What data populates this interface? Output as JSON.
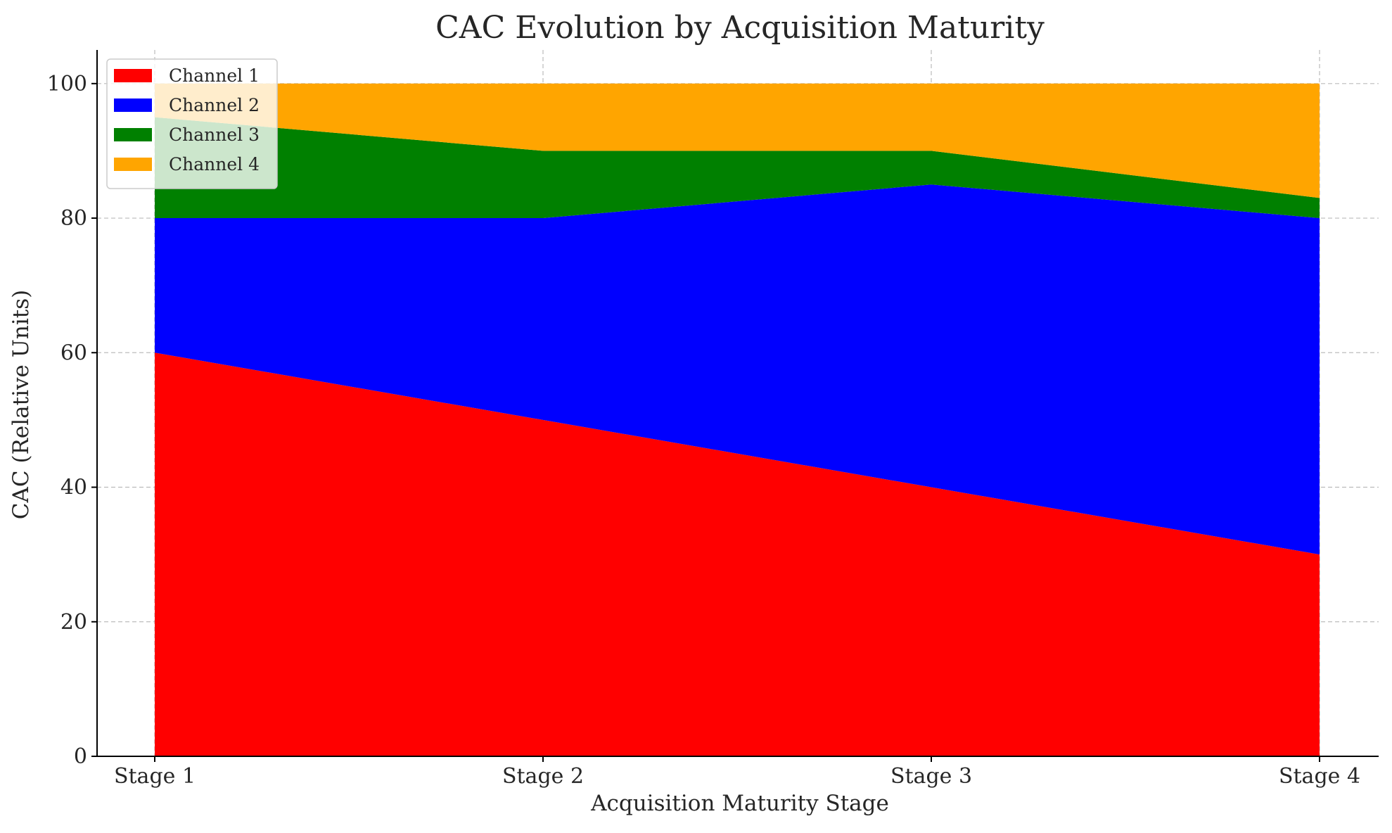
{
  "chart_data": {
    "type": "area",
    "stacked": true,
    "title": "CAC Evolution by Acquisition Maturity",
    "xlabel": "Acquisition Maturity Stage",
    "ylabel": "CAC (Relative Units)",
    "categories": [
      "Stage 1",
      "Stage 2",
      "Stage 3",
      "Stage 4"
    ],
    "ylim": [
      0,
      105
    ],
    "yticks": [
      0,
      20,
      40,
      60,
      80,
      100
    ],
    "grid": true,
    "legend_position": "top-left",
    "series": [
      {
        "name": "Channel 1",
        "color": "#ff0000",
        "values": [
          60,
          50,
          40,
          30
        ]
      },
      {
        "name": "Channel 2",
        "color": "#0000ff",
        "values": [
          20,
          30,
          45,
          50
        ]
      },
      {
        "name": "Channel 3",
        "color": "#008000",
        "values": [
          15,
          10,
          5,
          3
        ]
      },
      {
        "name": "Channel 4",
        "color": "#ffa500",
        "values": [
          5,
          10,
          10,
          17
        ]
      }
    ]
  }
}
